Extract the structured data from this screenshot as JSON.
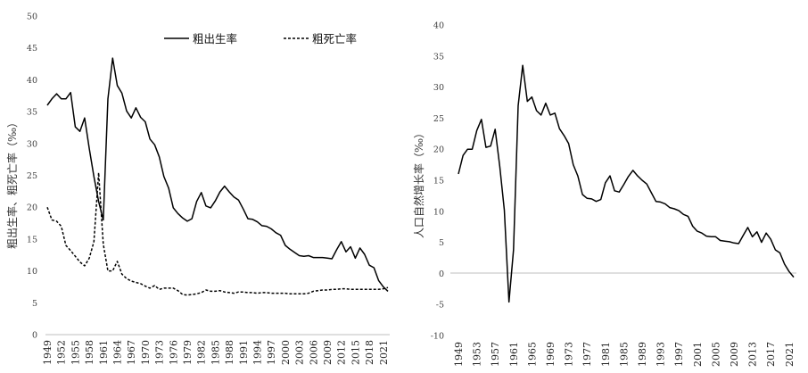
{
  "chart_data": [
    {
      "type": "line",
      "xlabel": "",
      "ylabel": "粗出生率、粗死亡率（‰）",
      "ylim": [
        0,
        50
      ],
      "yticks": [
        0,
        5,
        10,
        15,
        20,
        25,
        30,
        35,
        40,
        45,
        50
      ],
      "xlim": [
        1949,
        2022
      ],
      "xticks": [
        1949,
        1952,
        1955,
        1958,
        1961,
        1964,
        1967,
        1970,
        1973,
        1976,
        1979,
        1982,
        1985,
        1988,
        1991,
        1994,
        1997,
        2000,
        2003,
        2006,
        2009,
        2012,
        2015,
        2018,
        2021
      ],
      "legend": "top-right",
      "series": [
        {
          "name": "粗出生率",
          "style": "solid",
          "color": "#000000",
          "x": [
            1949,
            1950,
            1951,
            1952,
            1953,
            1954,
            1955,
            1956,
            1957,
            1958,
            1959,
            1960,
            1961,
            1962,
            1963,
            1964,
            1965,
            1966,
            1967,
            1968,
            1969,
            1970,
            1971,
            1972,
            1973,
            1974,
            1975,
            1976,
            1977,
            1978,
            1979,
            1980,
            1981,
            1982,
            1983,
            1984,
            1985,
            1986,
            1987,
            1988,
            1989,
            1990,
            1991,
            1992,
            1993,
            1994,
            1995,
            1996,
            1997,
            1998,
            1999,
            2000,
            2001,
            2002,
            2003,
            2004,
            2005,
            2006,
            2007,
            2008,
            2009,
            2010,
            2011,
            2012,
            2013,
            2014,
            2015,
            2016,
            2017,
            2018,
            2019,
            2020,
            2021,
            2022
          ],
          "values": [
            36.0,
            37.0,
            37.8,
            37.0,
            37.0,
            38.0,
            32.6,
            31.9,
            34.0,
            29.2,
            24.8,
            20.9,
            18.0,
            37.0,
            43.4,
            39.1,
            37.9,
            35.1,
            34.0,
            35.6,
            34.1,
            33.4,
            30.7,
            29.8,
            27.9,
            24.8,
            23.0,
            19.9,
            19.0,
            18.3,
            17.8,
            18.2,
            20.9,
            22.3,
            20.2,
            19.9,
            21.0,
            22.4,
            23.3,
            22.4,
            21.6,
            21.1,
            19.7,
            18.2,
            18.1,
            17.7,
            17.1,
            17.0,
            16.6,
            16.0,
            15.6,
            14.0,
            13.4,
            12.9,
            12.4,
            12.3,
            12.4,
            12.1,
            12.1,
            12.1,
            12.0,
            11.9,
            13.3,
            14.6,
            13.0,
            13.8,
            12.0,
            13.6,
            12.6,
            10.9,
            10.5,
            8.5,
            7.5,
            6.8
          ]
        },
        {
          "name": "粗死亡率",
          "style": "dashed",
          "color": "#000000",
          "x": [
            1949,
            1950,
            1951,
            1952,
            1953,
            1954,
            1955,
            1956,
            1957,
            1958,
            1959,
            1960,
            1961,
            1962,
            1963,
            1964,
            1965,
            1966,
            1967,
            1968,
            1969,
            1970,
            1971,
            1972,
            1973,
            1974,
            1975,
            1976,
            1977,
            1978,
            1979,
            1980,
            1981,
            1982,
            1983,
            1984,
            1985,
            1986,
            1987,
            1988,
            1989,
            1990,
            1991,
            1992,
            1993,
            1994,
            1995,
            1996,
            1997,
            1998,
            1999,
            2000,
            2001,
            2002,
            2003,
            2004,
            2005,
            2006,
            2007,
            2008,
            2009,
            2010,
            2011,
            2012,
            2013,
            2014,
            2015,
            2016,
            2017,
            2018,
            2019,
            2020,
            2021,
            2022
          ],
          "values": [
            20.0,
            18.0,
            17.8,
            17.0,
            14.0,
            13.2,
            12.3,
            11.4,
            10.8,
            12.0,
            14.6,
            25.4,
            14.2,
            10.0,
            10.0,
            11.5,
            9.5,
            8.8,
            8.4,
            8.2,
            8.0,
            7.6,
            7.3,
            7.7,
            7.1,
            7.3,
            7.3,
            7.3,
            6.9,
            6.3,
            6.2,
            6.3,
            6.4,
            6.6,
            7.0,
            6.8,
            6.8,
            6.9,
            6.7,
            6.6,
            6.5,
            6.7,
            6.7,
            6.6,
            6.6,
            6.5,
            6.6,
            6.6,
            6.5,
            6.5,
            6.5,
            6.5,
            6.4,
            6.4,
            6.4,
            6.4,
            6.5,
            6.8,
            6.9,
            7.0,
            7.0,
            7.1,
            7.1,
            7.2,
            7.2,
            7.1,
            7.1,
            7.1,
            7.1,
            7.1,
            7.1,
            7.1,
            7.2,
            7.4
          ]
        }
      ]
    },
    {
      "type": "line",
      "xlabel": "",
      "ylabel": "人口自然增长率（‰）",
      "ylim": [
        -10,
        40
      ],
      "yticks": [
        -10,
        -5,
        0,
        5,
        10,
        15,
        20,
        25,
        30,
        35,
        40
      ],
      "xlim": [
        1949,
        2022
      ],
      "xticks": [
        1949,
        1953,
        1957,
        1961,
        1965,
        1969,
        1973,
        1977,
        1981,
        1985,
        1989,
        1993,
        1997,
        2001,
        2005,
        2009,
        2013,
        2017,
        2021
      ],
      "legend": "none",
      "series": [
        {
          "style": "solid",
          "color": "#000000",
          "x": [
            1949,
            1950,
            1951,
            1952,
            1953,
            1954,
            1955,
            1956,
            1957,
            1958,
            1959,
            1960,
            1961,
            1962,
            1963,
            1964,
            1965,
            1966,
            1967,
            1968,
            1969,
            1970,
            1971,
            1972,
            1973,
            1974,
            1975,
            1976,
            1977,
            1978,
            1979,
            1980,
            1981,
            1982,
            1983,
            1984,
            1985,
            1986,
            1987,
            1988,
            1989,
            1990,
            1991,
            1992,
            1993,
            1994,
            1995,
            1996,
            1997,
            1998,
            1999,
            2000,
            2001,
            2002,
            2003,
            2004,
            2005,
            2006,
            2007,
            2008,
            2009,
            2010,
            2011,
            2012,
            2013,
            2014,
            2015,
            2016,
            2017,
            2018,
            2019,
            2020,
            2021,
            2022
          ],
          "values": [
            16.0,
            19.0,
            20.0,
            20.0,
            23.0,
            24.8,
            20.3,
            20.5,
            23.2,
            17.2,
            10.2,
            -4.6,
            3.8,
            27.0,
            33.5,
            27.7,
            28.4,
            26.2,
            25.5,
            27.4,
            25.5,
            25.8,
            23.3,
            22.2,
            20.9,
            17.5,
            15.7,
            12.7,
            12.1,
            12.0,
            11.6,
            11.9,
            14.6,
            15.7,
            13.3,
            13.1,
            14.3,
            15.6,
            16.6,
            15.7,
            15.0,
            14.4,
            13.0,
            11.6,
            11.5,
            11.2,
            10.6,
            10.4,
            10.1,
            9.5,
            9.2,
            7.6,
            6.8,
            6.5,
            6.0,
            5.9,
            5.9,
            5.3,
            5.2,
            5.1,
            4.9,
            4.8,
            6.1,
            7.4,
            5.9,
            6.7,
            5.0,
            6.5,
            5.5,
            3.8,
            3.3,
            1.5,
            0.3,
            -0.6
          ]
        }
      ]
    }
  ]
}
